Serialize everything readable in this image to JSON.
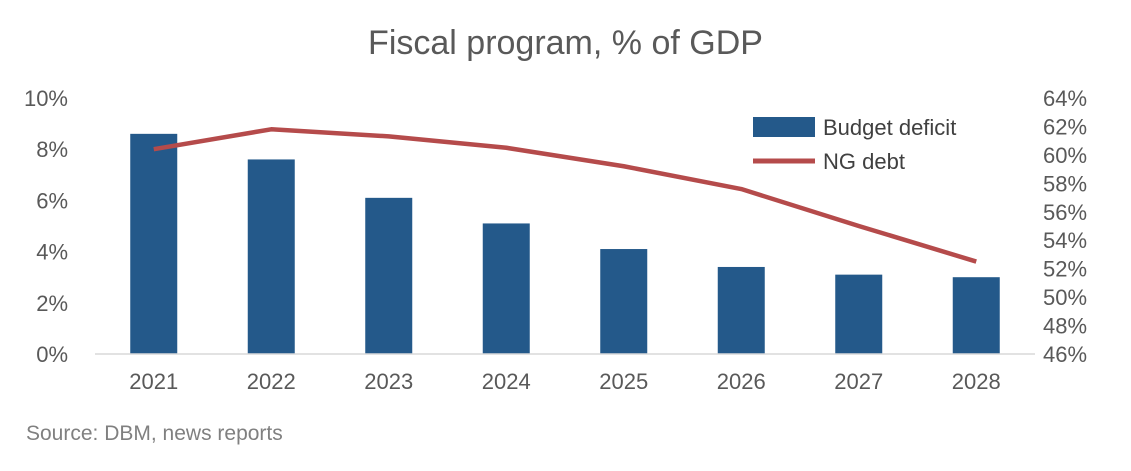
{
  "chart_data": {
    "type": "bar+line",
    "title": "Fiscal program, % of GDP",
    "source": "Source: DBM, news reports",
    "categories": [
      "2021",
      "2022",
      "2023",
      "2024",
      "2025",
      "2026",
      "2027",
      "2028"
    ],
    "series": [
      {
        "name": "Budget deficit",
        "type": "bar",
        "axis": "left",
        "color": "#24598A",
        "values": [
          8.6,
          7.6,
          6.1,
          5.1,
          4.1,
          3.4,
          3.1,
          3.0
        ]
      },
      {
        "name": "NG debt",
        "type": "line",
        "axis": "right",
        "color": "#B54B4B",
        "values": [
          60.4,
          61.8,
          61.3,
          60.5,
          59.2,
          57.6,
          55.0,
          52.5
        ]
      }
    ],
    "y_left": {
      "min": 0,
      "max": 10,
      "step": 2,
      "tick_labels": [
        "0%",
        "2%",
        "4%",
        "6%",
        "8%",
        "10%"
      ]
    },
    "y_right": {
      "min": 46,
      "max": 64,
      "step": 2,
      "tick_labels": [
        "46%",
        "48%",
        "50%",
        "52%",
        "54%",
        "56%",
        "58%",
        "60%",
        "62%",
        "64%"
      ]
    },
    "grid": false,
    "legend_position": "top-right"
  }
}
